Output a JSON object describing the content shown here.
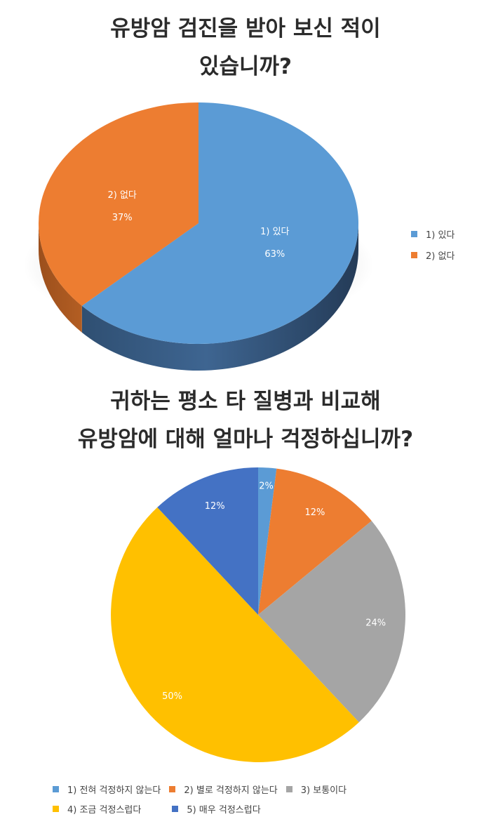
{
  "chart_data": [
    {
      "type": "pie",
      "title": [
        "유방암 검진을 받아 보신 적이",
        "있습니까?"
      ],
      "categories": [
        "1) 있다",
        "2) 없다"
      ],
      "values": [
        63,
        37
      ],
      "data_labels": [
        "63%",
        "37%"
      ],
      "colors": [
        "#5b9bd5",
        "#ed7d31"
      ],
      "legend_position": "right"
    },
    {
      "type": "pie",
      "title": [
        "귀하는 평소 타 질병과 비교해",
        "유방암에 대해 얼마나 걱정하십니까?"
      ],
      "categories": [
        "1) 전혀 걱정하지 않는다",
        "2) 별로 걱정하지 않는다",
        "3) 보통이다",
        "4) 조금 걱정스럽다",
        "5) 매우 걱정스럽다"
      ],
      "values": [
        2,
        12,
        24,
        50,
        12
      ],
      "data_labels": [
        "2%",
        "12%",
        "24%",
        "50%",
        "12%"
      ],
      "colors": [
        "#5b9bd5",
        "#ed7d31",
        "#a5a5a5",
        "#ffc000",
        "#4472c4"
      ],
      "legend_position": "bottom"
    }
  ]
}
